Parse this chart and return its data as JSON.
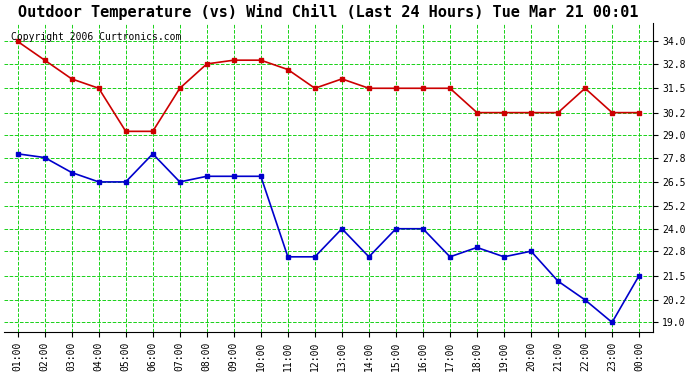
{
  "title": "Outdoor Temperature (vs) Wind Chill (Last 24 Hours) Tue Mar 21 00:01",
  "copyright": "Copyright 2006 Curtronics.com",
  "x_labels": [
    "01:00",
    "02:00",
    "03:00",
    "04:00",
    "05:00",
    "06:00",
    "07:00",
    "08:00",
    "09:00",
    "10:00",
    "11:00",
    "12:00",
    "13:00",
    "14:00",
    "15:00",
    "16:00",
    "17:00",
    "18:00",
    "19:00",
    "20:00",
    "21:00",
    "22:00",
    "23:00",
    "00:00"
  ],
  "red_data": [
    34.0,
    33.0,
    32.0,
    31.5,
    29.2,
    29.2,
    31.5,
    32.8,
    33.0,
    33.0,
    32.5,
    31.5,
    32.0,
    31.5,
    31.5,
    31.5,
    31.5,
    30.2,
    30.2,
    30.2,
    30.2,
    31.5,
    30.2,
    30.2
  ],
  "blue_data": [
    28.0,
    27.8,
    27.0,
    26.5,
    26.5,
    28.0,
    26.5,
    26.8,
    26.8,
    26.8,
    22.5,
    22.5,
    24.0,
    22.5,
    24.0,
    24.0,
    22.5,
    23.0,
    22.5,
    22.8,
    21.2,
    20.2,
    19.0,
    21.5
  ],
  "ylim": [
    18.5,
    35.0
  ],
  "yticks": [
    19.0,
    20.2,
    21.5,
    22.8,
    24.0,
    25.2,
    26.5,
    27.8,
    29.0,
    30.2,
    31.5,
    32.8,
    34.0
  ],
  "red_color": "#cc0000",
  "blue_color": "#0000cc",
  "bg_color": "#ffffff",
  "plot_bg_color": "#ffffff",
  "grid_color": "#00cc00",
  "title_fontsize": 11,
  "copyright_fontsize": 7
}
